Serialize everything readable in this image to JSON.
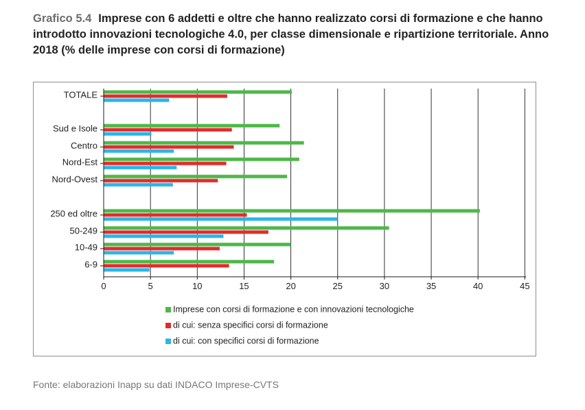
{
  "heading": {
    "number": "Grafico 5.4",
    "title": "Imprese con 6 addetti e oltre che hanno realizzato corsi di formazione e che hanno introdotto innovazioni tecnologiche 4.0, per classe dimensionale e ripartizione territoriale. Anno 2018 (% delle imprese con corsi di formazione)"
  },
  "source": "Fonte: elaborazioni Inapp su dati INDACO Imprese-CVTS",
  "chart_data": {
    "type": "bar",
    "orientation": "horizontal",
    "title": "",
    "xlabel": "",
    "ylabel": "",
    "xlim": [
      0,
      45
    ],
    "xticks": [
      0,
      5,
      10,
      15,
      20,
      25,
      30,
      35,
      40,
      45
    ],
    "grid": true,
    "legend_position": "bottom",
    "categories": [
      "TOTALE",
      "Sud e Isole",
      "Centro",
      "Nord-Est",
      "Nord-Ovest",
      "250 ed oltre",
      "50-249",
      "10-49",
      "6-9"
    ],
    "series": [
      {
        "name": "Imprese con corsi di formazione e con innovazioni tecnologiche",
        "color": "#4db848",
        "values": [
          20.1,
          18.8,
          21.4,
          20.9,
          19.6,
          40.2,
          30.5,
          20.0,
          18.2
        ]
      },
      {
        "name": "di cui: senza specifici corsi di formazione",
        "color": "#e32b2b",
        "values": [
          13.2,
          13.7,
          13.9,
          13.1,
          12.2,
          15.3,
          17.6,
          12.4,
          13.4
        ]
      },
      {
        "name": "di cui: con specifici corsi di formazione",
        "color": "#29b6e8",
        "values": [
          7.0,
          5.1,
          7.5,
          7.8,
          7.4,
          25.0,
          12.8,
          7.5,
          4.9
        ]
      }
    ]
  }
}
